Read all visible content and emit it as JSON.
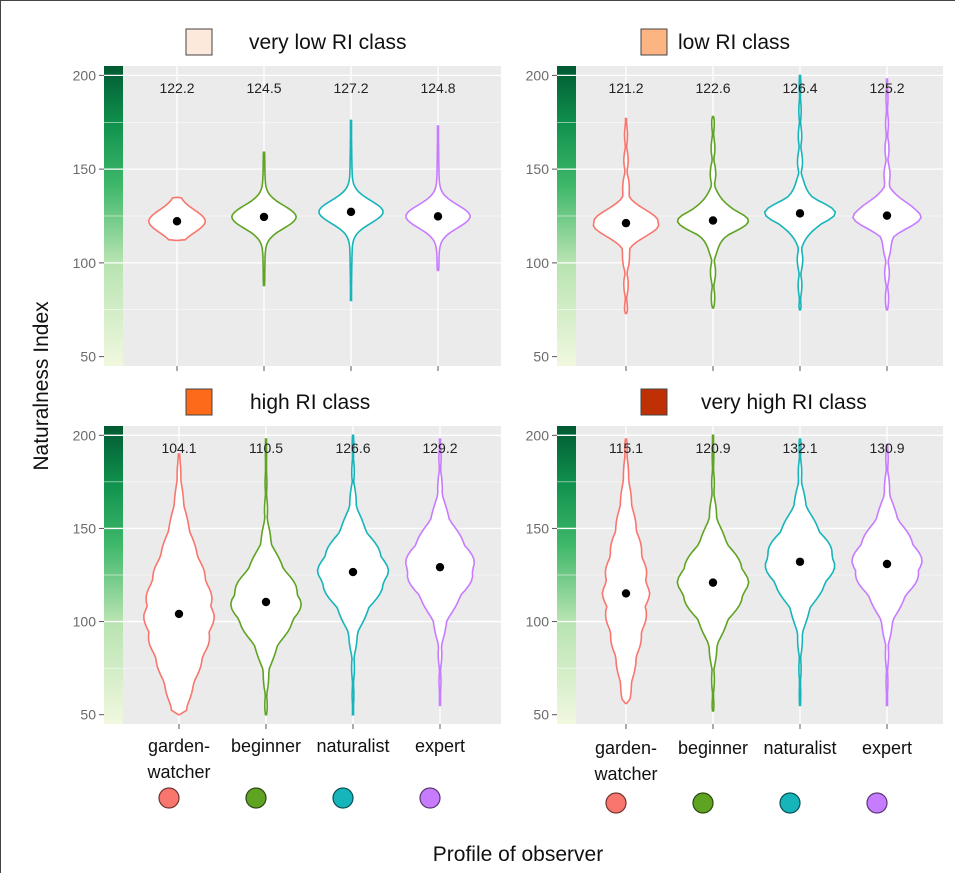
{
  "figure": {
    "y_axis_title": "Naturalness Index",
    "x_axis_title": "Profile of observer"
  },
  "chart_data": [
    {
      "type": "violin",
      "title": "very low RI class",
      "title_swatch_color": "#fde8dc",
      "categories": [
        "garden-watcher",
        "beginner",
        "naturalist",
        "expert"
      ],
      "category_colors": [
        "#f8766d",
        "#5fa323",
        "#16b4bb",
        "#c77cff"
      ],
      "means": [
        122.2,
        124.5,
        127.2,
        124.8
      ],
      "mean_labels": [
        "122.2",
        "124.5",
        "127.2",
        "124.8"
      ],
      "ranges": [
        [
          112,
          135
        ],
        [
          88,
          159
        ],
        [
          80,
          176
        ],
        [
          96,
          173
        ]
      ],
      "y_ticks": [
        "50",
        "100",
        "150",
        "200"
      ],
      "ylim": [
        45,
        205
      ],
      "grid": true,
      "show_category_labels": false
    },
    {
      "type": "violin",
      "title": "low RI class",
      "title_swatch_color": "#fbb482",
      "categories": [
        "garden-watcher",
        "beginner",
        "naturalist",
        "expert"
      ],
      "category_colors": [
        "#f8766d",
        "#5fa323",
        "#16b4bb",
        "#c77cff"
      ],
      "means": [
        121.2,
        122.6,
        126.4,
        125.2
      ],
      "mean_labels": [
        "121.2",
        "122.6",
        "126.4",
        "125.2"
      ],
      "ranges": [
        [
          73,
          177
        ],
        [
          76,
          178
        ],
        [
          75,
          200
        ],
        [
          75,
          198
        ]
      ],
      "y_ticks": [
        "50",
        "100",
        "150",
        "200"
      ],
      "ylim": [
        45,
        205
      ],
      "grid": true,
      "show_category_labels": false
    },
    {
      "type": "violin",
      "title": "high RI class",
      "title_swatch_color": "#fd6a1a",
      "categories": [
        "garden-watcher",
        "beginner",
        "naturalist",
        "expert"
      ],
      "category_labels": [
        [
          "garden-",
          "watcher"
        ],
        [
          "beginner"
        ],
        [
          "naturalist"
        ],
        [
          "expert"
        ]
      ],
      "category_colors": [
        "#f8766d",
        "#5fa323",
        "#16b4bb",
        "#c77cff"
      ],
      "means": [
        104.1,
        110.5,
        126.6,
        129.2
      ],
      "mean_labels": [
        "104.1",
        "110.5",
        "126.6",
        "129.2"
      ],
      "ranges": [
        [
          50,
          190
        ],
        [
          50,
          198
        ],
        [
          50,
          200
        ],
        [
          55,
          198
        ]
      ],
      "y_ticks": [
        "50",
        "100",
        "150",
        "200"
      ],
      "ylim": [
        45,
        205
      ],
      "grid": true,
      "show_category_labels": true
    },
    {
      "type": "violin",
      "title": "very high RI class",
      "title_swatch_color": "#c03005",
      "categories": [
        "garden-watcher",
        "beginner",
        "naturalist",
        "expert"
      ],
      "category_labels": [
        [
          "garden-",
          "watcher"
        ],
        [
          "beginner"
        ],
        [
          "naturalist"
        ],
        [
          "expert"
        ]
      ],
      "category_colors": [
        "#f8766d",
        "#5fa323",
        "#16b4bb",
        "#c77cff"
      ],
      "means": [
        115.1,
        120.9,
        132.1,
        130.9
      ],
      "mean_labels": [
        "115.1",
        "120.9",
        "132.1",
        "130.9"
      ],
      "ranges": [
        [
          56,
          198
        ],
        [
          52,
          200
        ],
        [
          55,
          198
        ],
        [
          55,
          195
        ]
      ],
      "y_ticks": [
        "50",
        "100",
        "150",
        "200"
      ],
      "ylim": [
        45,
        205
      ],
      "grid": true,
      "show_category_labels": true
    }
  ]
}
